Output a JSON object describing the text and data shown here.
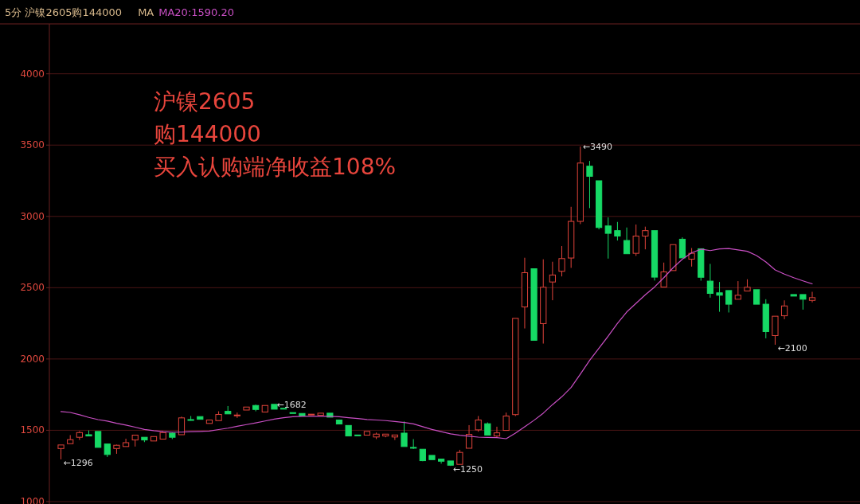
{
  "chart_data": {
    "type": "candlestick",
    "title": "5分 沪镍2605购144000",
    "legend_title": "MA",
    "legend": "top left",
    "grid": "y",
    "tick_labels": "y",
    "categories": [
      null,
      null,
      null,
      null,
      null,
      null,
      null,
      null,
      null,
      null,
      null,
      null,
      null,
      null,
      null,
      null,
      null,
      null,
      null,
      null,
      null,
      null,
      null,
      null,
      null,
      null,
      null,
      null,
      null,
      null,
      null,
      null,
      null,
      null,
      null,
      null,
      null,
      null,
      null,
      null,
      null,
      null,
      null,
      null,
      null,
      null,
      null,
      null,
      null,
      null,
      null,
      null,
      null,
      null,
      null,
      null,
      null,
      null,
      null,
      null,
      null,
      null,
      null,
      null,
      null,
      null,
      null,
      null,
      null,
      null,
      null,
      null,
      null,
      null,
      null,
      null,
      null,
      null,
      null,
      null,
      null,
      null
    ],
    "ohlc": [
      [
        1372,
        1397,
        1296,
        1397
      ],
      [
        1406,
        1466,
        1406,
        1434
      ],
      [
        1451,
        1494,
        1432,
        1484
      ],
      [
        1469,
        1499,
        1460,
        1460
      ],
      [
        1492,
        1492,
        1380,
        1380
      ],
      [
        1404,
        1404,
        1313,
        1330
      ],
      [
        1372,
        1399,
        1335,
        1395
      ],
      [
        1386,
        1441,
        1386,
        1413
      ],
      [
        1432,
        1466,
        1386,
        1466
      ],
      [
        1451,
        1451,
        1417,
        1432
      ],
      [
        1425,
        1456,
        1425,
        1456
      ],
      [
        1438,
        1494,
        1438,
        1484
      ],
      [
        1480,
        1484,
        1438,
        1451
      ],
      [
        1469,
        1596,
        1469,
        1587
      ],
      [
        1575,
        1600,
        1568,
        1570
      ],
      [
        1596,
        1596,
        1577,
        1577
      ],
      [
        1548,
        1572,
        1548,
        1572
      ],
      [
        1568,
        1633,
        1568,
        1611
      ],
      [
        1633,
        1670,
        1615,
        1615
      ],
      [
        1603,
        1624,
        1587,
        1607
      ],
      [
        1642,
        1663,
        1642,
        1663
      ],
      [
        1674,
        1680,
        1633,
        1646
      ],
      [
        1628,
        1674,
        1628,
        1674
      ],
      [
        1682,
        1682,
        1648,
        1648
      ],
      [
        1654,
        1654,
        1650,
        1650
      ],
      [
        1624,
        1624,
        1618,
        1618
      ],
      [
        1618,
        1618,
        1600,
        1600
      ],
      [
        1611,
        1613,
        1611,
        1613
      ],
      [
        1605,
        1620,
        1605,
        1620
      ],
      [
        1620,
        1620,
        1592,
        1592
      ],
      [
        1572,
        1572,
        1544,
        1544
      ],
      [
        1534,
        1534,
        1460,
        1460
      ],
      [
        1467,
        1467,
        1464,
        1464
      ],
      [
        1466,
        1492,
        1466,
        1492
      ],
      [
        1453,
        1484,
        1438,
        1473
      ],
      [
        1460,
        1473,
        1451,
        1473
      ],
      [
        1453,
        1467,
        1432,
        1467
      ],
      [
        1480,
        1562,
        1386,
        1386
      ],
      [
        1380,
        1438,
        1369,
        1378
      ],
      [
        1367,
        1367,
        1283,
        1287
      ],
      [
        1324,
        1324,
        1294,
        1294
      ],
      [
        1298,
        1298,
        1266,
        1283
      ],
      [
        1285,
        1285,
        1250,
        1255
      ],
      [
        1261,
        1363,
        1261,
        1345
      ],
      [
        1374,
        1536,
        1374,
        1471
      ],
      [
        1503,
        1600,
        1490,
        1572
      ],
      [
        1546,
        1555,
        1466,
        1466
      ],
      [
        1460,
        1525,
        1449,
        1482
      ],
      [
        1499,
        1624,
        1499,
        1600
      ],
      [
        1610,
        2285,
        1600,
        2285
      ],
      [
        2365,
        2710,
        2214,
        2605
      ],
      [
        2633,
        2633,
        2131,
        2131
      ],
      [
        2248,
        2699,
        2108,
        2503
      ],
      [
        2540,
        2682,
        2412,
        2589
      ],
      [
        2615,
        2792,
        2579,
        2704
      ],
      [
        2708,
        3067,
        2639,
        2965
      ],
      [
        2965,
        3490,
        2946,
        3374
      ],
      [
        3352,
        3389,
        3058,
        3281
      ],
      [
        3250,
        3250,
        2909,
        2922
      ],
      [
        2933,
        2993,
        2704,
        2881
      ],
      [
        2900,
        2961,
        2831,
        2862
      ],
      [
        2831,
        2922,
        2738,
        2738
      ],
      [
        2741,
        2943,
        2723,
        2862
      ],
      [
        2862,
        2928,
        2769,
        2900
      ],
      [
        2900,
        2900,
        2550,
        2574
      ],
      [
        2505,
        2676,
        2505,
        2611
      ],
      [
        2620,
        2802,
        2620,
        2802
      ],
      [
        2840,
        2853,
        2709,
        2709
      ],
      [
        2700,
        2778,
        2648,
        2741
      ],
      [
        2773,
        2773,
        2549,
        2573
      ],
      [
        2546,
        2667,
        2430,
        2460
      ],
      [
        2464,
        2540,
        2331,
        2447
      ],
      [
        2480,
        2480,
        2326,
        2384
      ],
      [
        2419,
        2546,
        2419,
        2447
      ],
      [
        2477,
        2559,
        2477,
        2503
      ],
      [
        2486,
        2486,
        2384,
        2384
      ],
      [
        2384,
        2419,
        2145,
        2192
      ],
      [
        2164,
        2300,
        2100,
        2300
      ],
      [
        2303,
        2411,
        2279,
        2372
      ],
      [
        2452,
        2452,
        2441,
        2441
      ],
      [
        2452,
        2452,
        2346,
        2419
      ],
      [
        2411,
        2471,
        2397,
        2430
      ]
    ],
    "series": [
      {
        "name": "MA20:1590.20",
        "type": "line",
        "color": "#c94fc4",
        "values": [
          1631,
          1625,
          1609,
          1590,
          1575,
          1564,
          1549,
          1536,
          1522,
          1506,
          1497,
          1490,
          1487,
          1487,
          1490,
          1492,
          1495,
          1505,
          1515,
          1528,
          1540,
          1552,
          1565,
          1578,
          1588,
          1595,
          1598,
          1598,
          1598,
          1598,
          1595,
          1588,
          1582,
          1576,
          1572,
          1568,
          1562,
          1555,
          1545,
          1525,
          1506,
          1490,
          1475,
          1465,
          1458,
          1452,
          1450,
          1448,
          1441,
          1480,
          1525,
          1570,
          1620,
          1680,
          1735,
          1800,
          1894,
          1990,
          2075,
          2160,
          2250,
          2330,
          2390,
          2450,
          2505,
          2570,
          2640,
          2700,
          2745,
          2770,
          2760,
          2772,
          2775,
          2765,
          2755,
          2725,
          2680,
          2625,
          2595,
          2570,
          2548,
          2527
        ]
      }
    ],
    "ylim": [
      983,
      4350
    ],
    "yticks": [
      1000,
      1500,
      2000,
      2500,
      3000,
      3500,
      4000
    ],
    "annotations": [
      "沪镍2605",
      "购144000",
      "买入认购端净收益108%",
      "←3490",
      "←1682",
      "←1296",
      "←1250",
      "←2100"
    ]
  }
}
